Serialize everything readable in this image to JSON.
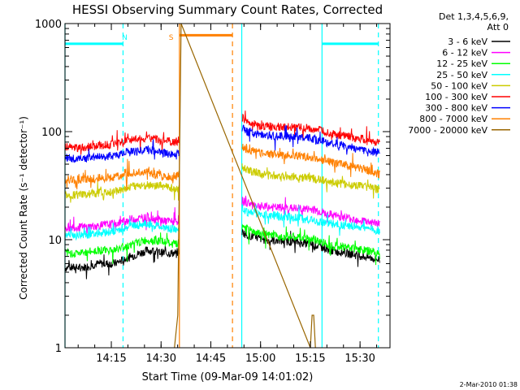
{
  "chart_data": {
    "type": "line",
    "title": "HESSI Observing Summary Count Rates, Corrected",
    "xlabel": "Start Time (09-Mar-09 14:01:02)",
    "ylabel": "Corrected Count Rate (s⁻¹ detector⁻¹)",
    "ylog": true,
    "ylim": [
      1,
      1000
    ],
    "xlim_minutes": [
      0,
      98
    ],
    "x_unit": "minutes after 14:01:02",
    "x_ticks": [
      {
        "label": "14:15",
        "min": 13.97
      },
      {
        "label": "14:30",
        "min": 28.97
      },
      {
        "label": "14:45",
        "min": 43.97
      },
      {
        "label": "15:00",
        "min": 58.97
      },
      {
        "label": "15:15",
        "min": 73.97
      },
      {
        "label": "15:30",
        "min": 88.97
      }
    ],
    "y_ticks": [
      {
        "label": "1",
        "value": 1
      },
      {
        "label": "10",
        "value": 10
      },
      {
        "label": "100",
        "value": 100
      },
      {
        "label": "1000",
        "value": 1000
      }
    ],
    "legend_position": "right",
    "legend_title": [
      "Det 1,3,4,5,6,9,",
      "Att 0"
    ],
    "series": [
      {
        "name": "3 - 6 keV",
        "color": "#000000",
        "x": [
          0,
          5,
          10,
          15,
          20,
          25,
          30,
          33,
          53,
          55,
          60,
          70,
          75,
          80,
          90,
          95
        ],
        "y": [
          5.5,
          5.5,
          6,
          6,
          7,
          8,
          7.5,
          7.5,
          12,
          11,
          10,
          9.5,
          9,
          8,
          7,
          6.5
        ]
      },
      {
        "name": "6 - 12 keV",
        "color": "#ff00ff",
        "x": [
          0,
          5,
          10,
          15,
          20,
          25,
          30,
          33,
          53,
          55,
          60,
          70,
          75,
          80,
          90,
          95
        ],
        "y": [
          13,
          13,
          13.5,
          14,
          15.5,
          16,
          15,
          14.5,
          23,
          22,
          20,
          19.5,
          19,
          17,
          15,
          14
        ]
      },
      {
        "name": "12 - 25 keV",
        "color": "#00ff00",
        "x": [
          0,
          5,
          10,
          15,
          20,
          25,
          30,
          33,
          53,
          55,
          60,
          70,
          75,
          80,
          90,
          95
        ],
        "y": [
          7.5,
          7.5,
          8,
          8,
          9,
          10,
          9.5,
          9,
          14,
          12.5,
          11,
          10.5,
          10,
          9,
          8,
          7.5
        ]
      },
      {
        "name": "25 - 50 keV",
        "color": "#00ffff",
        "x": [
          0,
          5,
          10,
          15,
          20,
          25,
          30,
          33,
          53,
          55,
          60,
          70,
          75,
          80,
          90,
          95
        ],
        "y": [
          11,
          11,
          11.5,
          12,
          13.5,
          14,
          13,
          12.5,
          20,
          18,
          17,
          16,
          15,
          14,
          13,
          12
        ]
      },
      {
        "name": "50 - 100 keV",
        "color": "#cccc00",
        "x": [
          0,
          5,
          10,
          15,
          20,
          25,
          30,
          33,
          53,
          55,
          60,
          70,
          75,
          80,
          90,
          95
        ],
        "y": [
          26,
          26,
          27,
          28,
          31,
          32,
          31,
          30,
          48,
          44,
          40,
          38,
          37,
          34,
          31,
          29
        ]
      },
      {
        "name": "100 - 300 keV",
        "color": "#ff0000",
        "x": [
          0,
          5,
          10,
          15,
          20,
          25,
          30,
          33,
          53,
          55,
          60,
          70,
          75,
          80,
          90,
          95
        ],
        "y": [
          72,
          71,
          74,
          76,
          84,
          86,
          82,
          80,
          140,
          120,
          112,
          110,
          106,
          96,
          85,
          79
        ]
      },
      {
        "name": "300 - 800 keV",
        "color": "#0000ff",
        "x": [
          0,
          5,
          10,
          15,
          20,
          25,
          30,
          33,
          53,
          55,
          60,
          70,
          75,
          80,
          90,
          95
        ],
        "y": [
          57,
          56,
          58,
          60,
          65,
          68,
          63,
          62,
          112,
          100,
          92,
          90,
          86,
          78,
          68,
          63
        ]
      },
      {
        "name": "800 - 7000 keV",
        "color": "#ff8000",
        "x": [
          0,
          5,
          10,
          15,
          20,
          25,
          30,
          33,
          53,
          55,
          60,
          70,
          75,
          80,
          90,
          95
        ],
        "y": [
          36,
          36,
          37,
          38,
          41,
          42,
          39,
          38,
          76,
          68,
          62,
          60,
          58,
          52,
          45,
          40
        ]
      },
      {
        "name": "7000 - 20000 keV",
        "color": "#996600",
        "x": [
          33,
          34,
          35,
          74,
          74.5,
          75,
          75.5
        ],
        "y": [
          1,
          2,
          1000,
          1,
          2,
          2,
          1
        ]
      }
    ],
    "annotations": [
      {
        "text": "N",
        "color": "#00ffff",
        "x_min": 18
      },
      {
        "text": "S",
        "color": "#ff8000",
        "x_min": 32
      }
    ],
    "state_bars": [
      {
        "name": "night",
        "color": "#00ffff",
        "x0": 0,
        "x1": 17.5,
        "y": 650
      },
      {
        "name": "saa",
        "color": "#ff8000",
        "x0": 34.5,
        "x1": 50.5,
        "y": 780
      },
      {
        "name": "night",
        "color": "#00ffff",
        "x0": 77.5,
        "x1": 94.5,
        "y": 650
      }
    ],
    "vertical_markers": [
      {
        "color": "#00ffff",
        "x": 0,
        "style": "solid"
      },
      {
        "color": "#00ffff",
        "x": 17.5,
        "style": "dashed"
      },
      {
        "color": "#ff8000",
        "x": 34.5,
        "style": "solid"
      },
      {
        "color": "#ff8000",
        "x": 50.5,
        "style": "dashed"
      },
      {
        "color": "#00ffff",
        "x": 53.3,
        "style": "solid"
      },
      {
        "color": "#00ffff",
        "x": 77.5,
        "style": "solid"
      },
      {
        "color": "#00ffff",
        "x": 94.5,
        "style": "dashed"
      }
    ],
    "footer_date": "2-Mar-2010 01:38"
  }
}
